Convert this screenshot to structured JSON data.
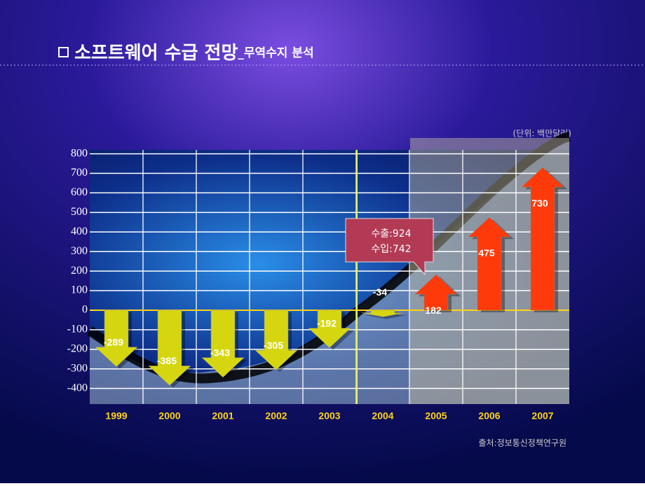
{
  "chart_data": {
    "type": "arrow-bar",
    "title": "소프트웨어 수급 전망",
    "subtitle": "_무역수지 분석",
    "unit": "(단위: 백만달러)",
    "source": "출처:정보통신정책연구원",
    "annotations": [
      "수출:924",
      "수입:742"
    ],
    "categories": [
      "1999",
      "2000",
      "2001",
      "2002",
      "2003",
      "2004",
      "2005",
      "2006",
      "2007"
    ],
    "values": [
      -289,
      -385,
      -343,
      -305,
      -192,
      -34,
      182,
      475,
      730
    ],
    "color_negative": "#d6d610",
    "color_positive": "#ff3a0a",
    "ylim": [
      -480,
      820
    ],
    "yticks": [
      800,
      700,
      600,
      500,
      400,
      300,
      200,
      100,
      0,
      -100,
      -200,
      -300,
      -400
    ],
    "grid": true
  }
}
